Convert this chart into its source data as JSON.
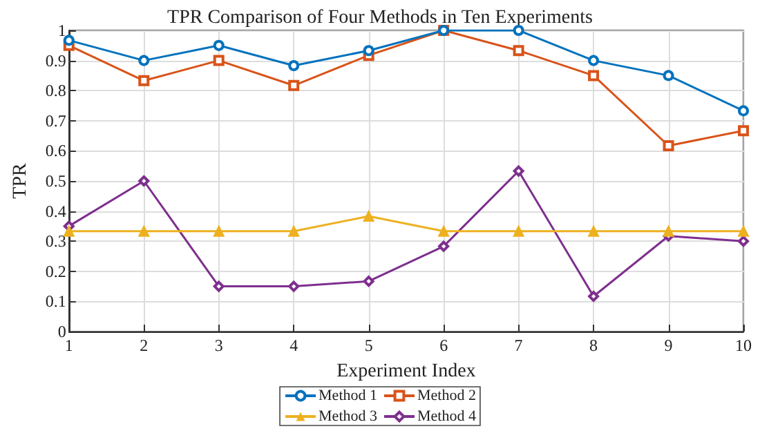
{
  "chart_data": {
    "type": "line",
    "title": "TPR Comparison of Four Methods in Ten Experiments",
    "xlabel": "Experiment Index",
    "ylabel": "TPR",
    "x": [
      1,
      2,
      3,
      4,
      5,
      6,
      7,
      8,
      9,
      10
    ],
    "series": [
      {
        "name": "Method 1",
        "color": "#0072bd",
        "marker": "circle",
        "values": [
          0.967,
          0.9,
          0.95,
          0.883,
          0.933,
          1,
          1,
          0.9,
          0.85,
          0.733
        ]
      },
      {
        "name": "Method 2",
        "color": "#d95319",
        "marker": "square",
        "values": [
          0.95,
          0.833,
          0.9,
          0.817,
          0.917,
          1,
          0.933,
          0.85,
          0.617,
          0.667
        ]
      },
      {
        "name": "Method 3",
        "color": "#edb120",
        "marker": "triangle",
        "values": [
          0.333,
          0.333,
          0.333,
          0.333,
          0.383,
          0.333,
          0.333,
          0.333,
          0.333,
          0.333
        ]
      },
      {
        "name": "Method 4",
        "color": "#7e2f8e",
        "marker": "diamond",
        "values": [
          0.35,
          0.5,
          0.15,
          0.15,
          0.167,
          0.283,
          0.533,
          0.117,
          0.317,
          0.3
        ]
      }
    ],
    "xlim": [
      1,
      10
    ],
    "xticks": [
      1,
      2,
      3,
      4,
      5,
      6,
      7,
      8,
      9,
      10
    ],
    "ylim": [
      0,
      1
    ],
    "yticks": [
      0,
      0.1,
      0.2,
      0.3,
      0.4,
      0.5,
      0.6,
      0.7,
      0.8,
      0.9,
      1
    ],
    "grid": true,
    "legend": "bottom",
    "line_style": "solid"
  }
}
